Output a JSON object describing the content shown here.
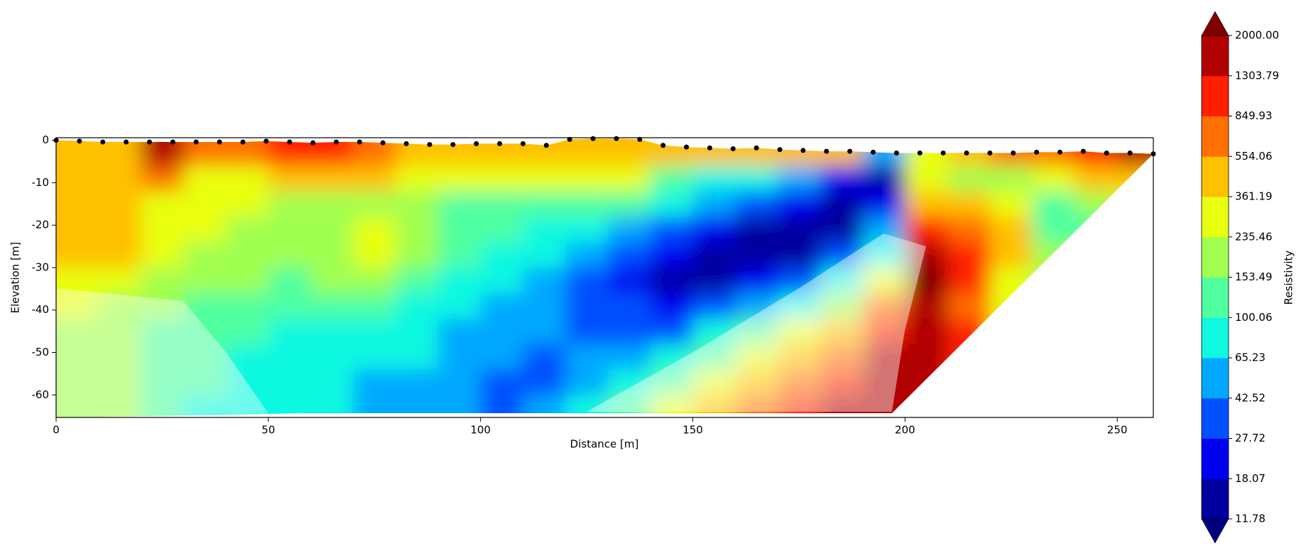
{
  "chart_data": {
    "type": "contour",
    "xlabel": "Distance [m]",
    "ylabel": "Elevation [m]",
    "xlim": [
      0,
      258.5
    ],
    "ylim": [
      -65.3,
      0.6
    ],
    "xticks": [
      0,
      50,
      100,
      150,
      200,
      250
    ],
    "yticks": [
      0,
      -10,
      -20,
      -30,
      -40,
      -50,
      -60
    ],
    "field": {
      "x": [
        5,
        15,
        25,
        35,
        45,
        55,
        65,
        75,
        85,
        95,
        105,
        115,
        125,
        135,
        145,
        155,
        165,
        175,
        185,
        195,
        205,
        215,
        225,
        235,
        245,
        255
      ],
      "y": [
        -3,
        -9,
        -15,
        -21,
        -27,
        -33,
        -39,
        -45,
        -51,
        -57,
        -63
      ],
      "values": [
        [
          450,
          500,
          1500,
          600,
          700,
          900,
          900,
          800,
          500,
          500,
          500,
          500,
          500,
          500,
          500,
          450,
          450,
          450,
          400,
          50,
          350,
          500,
          600,
          800,
          1000,
          1500
        ],
        [
          400,
          400,
          700,
          300,
          300,
          400,
          400,
          400,
          350,
          300,
          280,
          300,
          300,
          250,
          150,
          90,
          80,
          50,
          25,
          15,
          250,
          200,
          180,
          250,
          400,
          500
        ],
        [
          400,
          400,
          300,
          280,
          250,
          200,
          180,
          200,
          160,
          140,
          130,
          140,
          140,
          120,
          80,
          45,
          30,
          22,
          13,
          20,
          500,
          400,
          300,
          150,
          200,
          300
        ],
        [
          400,
          380,
          300,
          250,
          200,
          200,
          200,
          300,
          200,
          130,
          110,
          100,
          80,
          60,
          40,
          25,
          17,
          14,
          15,
          50,
          1000,
          700,
          450,
          150,
          150,
          200
        ],
        [
          400,
          380,
          250,
          200,
          180,
          170,
          200,
          250,
          180,
          110,
          90,
          70,
          45,
          30,
          22,
          15,
          14,
          17,
          30,
          100,
          1500,
          1000,
          400,
          200,
          150,
          200
        ],
        [
          300,
          250,
          200,
          180,
          160,
          150,
          160,
          160,
          120,
          90,
          70,
          55,
          35,
          25,
          17,
          18,
          25,
          40,
          80,
          300,
          2500,
          1000,
          350,
          200,
          150,
          200
        ],
        [
          250,
          200,
          180,
          150,
          130,
          120,
          120,
          110,
          90,
          70,
          60,
          48,
          35,
          30,
          25,
          35,
          60,
          100,
          200,
          600,
          2000,
          800,
          300,
          200,
          150,
          200
        ],
        [
          200,
          180,
          150,
          130,
          110,
          100,
          100,
          90,
          80,
          60,
          50,
          45,
          40,
          40,
          40,
          70,
          150,
          250,
          500,
          1000,
          1800,
          900,
          300,
          200,
          150,
          200
        ],
        [
          200,
          160,
          140,
          120,
          100,
          90,
          80,
          80,
          70,
          50,
          45,
          40,
          45,
          55,
          70,
          150,
          300,
          500,
          800,
          1500,
          1500,
          900,
          300,
          200,
          150,
          200
        ],
        [
          200,
          160,
          130,
          110,
          90,
          80,
          80,
          60,
          50,
          45,
          40,
          40,
          60,
          80,
          150,
          250,
          500,
          800,
          1200,
          1500,
          1500,
          900,
          300,
          200,
          150,
          200
        ],
        [
          200,
          160,
          130,
          100,
          90,
          80,
          80,
          60,
          50,
          45,
          40,
          60,
          80,
          150,
          250,
          400,
          800,
          1000,
          1500,
          1500,
          1500,
          900,
          300,
          200,
          150,
          200
        ]
      ]
    },
    "colorbar": {
      "label": "Resistivity",
      "levels": [
        11.78,
        18.07,
        27.72,
        42.52,
        65.23,
        100.06,
        153.49,
        235.46,
        361.19,
        554.06,
        849.93,
        1303.79,
        {
          "value": 2000,
          "label": "2000.00"
        }
      ],
      "colors": [
        "#00009f",
        "#0000f0",
        "#0050ff",
        "#00a8ff",
        "#10f8e0",
        "#50ffa0",
        "#a0ff50",
        "#e8ff10",
        "#ffc000",
        "#ff7000",
        "#ff2000",
        "#b00000"
      ],
      "under_color": "#00007f",
      "over_color": "#7f0000"
    },
    "electrodes": {
      "color": "#000000",
      "x": [
        0,
        5.5,
        11,
        16.5,
        22,
        27.5,
        33,
        38.5,
        44,
        49.5,
        55,
        60.5,
        66,
        71.5,
        77,
        82.5,
        88,
        93.5,
        99,
        104.5,
        110,
        115.5,
        121,
        126.5,
        132,
        137.5,
        143,
        148.5,
        154,
        159.5,
        165,
        170.5,
        176,
        181.5,
        187,
        192.5,
        198,
        203.5,
        209,
        214.5,
        220,
        225.5,
        231,
        236.5,
        242,
        247.5,
        253,
        258.5
      ],
      "y": [
        0,
        -0.2,
        -0.4,
        -0.4,
        -0.4,
        -0.4,
        -0.4,
        -0.4,
        -0.4,
        -0.2,
        -0.4,
        -0.6,
        -0.4,
        -0.4,
        -0.6,
        -0.8,
        -1,
        -1,
        -0.8,
        -0.8,
        -0.8,
        -1.2,
        0.2,
        0.4,
        0.4,
        0.2,
        -1.2,
        -1.6,
        -1.8,
        -2,
        -1.8,
        -2.2,
        -2.4,
        -2.6,
        -2.6,
        -2.8,
        -3,
        -3,
        -3,
        -3,
        -3,
        -3,
        -2.8,
        -2.8,
        -2.6,
        -3,
        -3,
        -3.2
      ]
    }
  }
}
